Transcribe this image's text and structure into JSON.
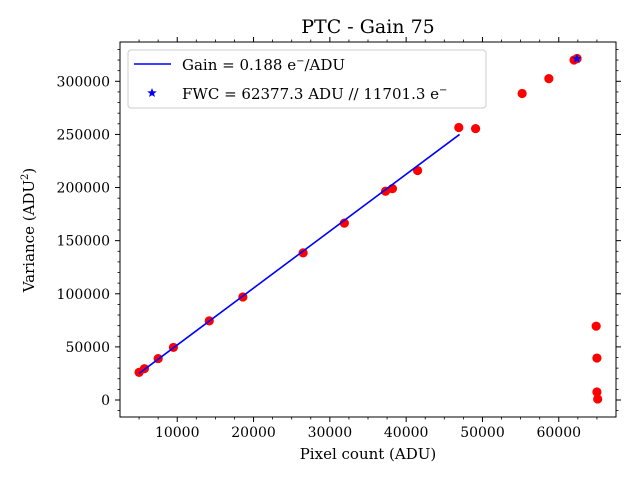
{
  "chart_data": {
    "type": "scatter",
    "title": "PTC - Gain 75",
    "xlabel": "Pixel count (ADU)",
    "ylabel_main": "Variance (ADU",
    "ylabel_sup": "2",
    "ylabel_end": ")",
    "xlim": [
      2500,
      67500
    ],
    "ylim": [
      -16000,
      337000
    ],
    "x_ticks": [
      10000,
      20000,
      30000,
      40000,
      50000,
      60000
    ],
    "y_ticks": [
      0,
      50000,
      100000,
      150000,
      200000,
      250000,
      300000
    ],
    "x_tick_labels": [
      "10000",
      "20000",
      "30000",
      "40000",
      "50000",
      "60000"
    ],
    "y_tick_labels": [
      "0",
      "50000",
      "100000",
      "150000",
      "200000",
      "250000",
      "300000"
    ],
    "legend_position": "top-left",
    "legend": {
      "fit_main": "Gain = 0.188 e",
      "fit_sup": "−",
      "fit_end": "/ADU",
      "fwc_main": "FWC = 62377.3 ADU // 11701.3 e",
      "fwc_sup": "−"
    },
    "colors": {
      "points": "#ff0000",
      "fit": "#0000ff",
      "fwc": "#0000ff"
    },
    "points": [
      {
        "x": 5000,
        "y": 26000
      },
      {
        "x": 5700,
        "y": 29500
      },
      {
        "x": 7500,
        "y": 39000
      },
      {
        "x": 9500,
        "y": 49500
      },
      {
        "x": 14200,
        "y": 74500
      },
      {
        "x": 18600,
        "y": 97000
      },
      {
        "x": 26500,
        "y": 138500
      },
      {
        "x": 31900,
        "y": 166500
      },
      {
        "x": 37300,
        "y": 196500
      },
      {
        "x": 38200,
        "y": 199000
      },
      {
        "x": 41500,
        "y": 216000
      },
      {
        "x": 46900,
        "y": 256500
      },
      {
        "x": 49100,
        "y": 255500
      },
      {
        "x": 55200,
        "y": 288500
      },
      {
        "x": 58700,
        "y": 302500
      },
      {
        "x": 62000,
        "y": 320000
      },
      {
        "x": 62400,
        "y": 321500
      },
      {
        "x": 64900,
        "y": 69500
      },
      {
        "x": 65000,
        "y": 39500
      },
      {
        "x": 65000,
        "y": 7500
      },
      {
        "x": 65100,
        "y": 1000
      }
    ],
    "fit_line": [
      {
        "x": 5000,
        "y": 25000
      },
      {
        "x": 47000,
        "y": 250000
      }
    ],
    "fwc_point": {
      "x": 62377.3,
      "y": 321200
    }
  }
}
